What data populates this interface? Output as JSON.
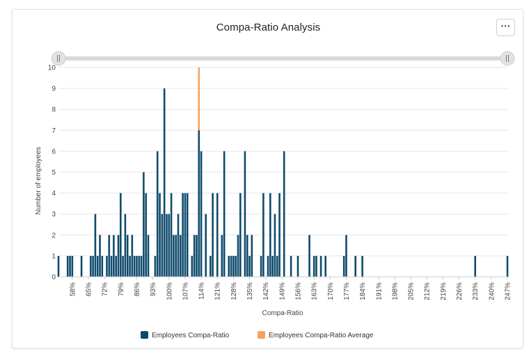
{
  "widget": {
    "menu_icon": "more-horizontal-icon",
    "menu_label": "···"
  },
  "colors": {
    "primary": "#0e4a6b",
    "average": "#f5a35c",
    "grid": "#e6e6e6",
    "axis": "#cccccc",
    "slider_track": "#dadada",
    "slider_handle": "#e2e2e2"
  },
  "chart_data": {
    "type": "bar",
    "title": "Compa-Ratio Analysis",
    "xlabel": "Compa-Ratio",
    "ylabel": "Number of employees",
    "x_range": [
      52,
      247
    ],
    "ylim": [
      0,
      10
    ],
    "y_ticks": [
      "0",
      "1",
      "2",
      "3",
      "4",
      "5",
      "6",
      "7",
      "8",
      "9",
      "10"
    ],
    "x_tick_labels": [
      "58%",
      "65%",
      "72%",
      "79%",
      "86%",
      "93%",
      "100%",
      "107%",
      "114%",
      "121%",
      "128%",
      "135%",
      "142%",
      "149%",
      "156%",
      "163%",
      "170%",
      "177%",
      "184%",
      "191%",
      "198%",
      "205%",
      "212%",
      "219%",
      "226%",
      "233%",
      "240%",
      "247%"
    ],
    "x_tick_values": [
      58,
      65,
      72,
      79,
      86,
      93,
      100,
      107,
      114,
      121,
      128,
      135,
      142,
      149,
      156,
      163,
      170,
      177,
      184,
      191,
      198,
      205,
      212,
      219,
      226,
      233,
      240,
      247
    ],
    "grid": true,
    "legend_position": "bottom",
    "series": [
      {
        "name": "Employees Compa-Ratio",
        "color": "#0e4a6b",
        "points": [
          [
            52,
            1
          ],
          [
            56,
            1
          ],
          [
            57,
            1
          ],
          [
            58,
            1
          ],
          [
            62,
            1
          ],
          [
            66,
            1
          ],
          [
            67,
            1
          ],
          [
            68,
            3
          ],
          [
            69,
            1
          ],
          [
            70,
            2
          ],
          [
            71,
            1
          ],
          [
            73,
            1
          ],
          [
            74,
            2
          ],
          [
            75,
            1
          ],
          [
            76,
            2
          ],
          [
            77,
            1
          ],
          [
            78,
            2
          ],
          [
            79,
            4
          ],
          [
            80,
            1
          ],
          [
            81,
            3
          ],
          [
            82,
            2
          ],
          [
            83,
            1
          ],
          [
            84,
            2
          ],
          [
            85,
            1
          ],
          [
            86,
            1
          ],
          [
            87,
            1
          ],
          [
            88,
            1
          ],
          [
            89,
            5
          ],
          [
            90,
            4
          ],
          [
            91,
            2
          ],
          [
            94,
            1
          ],
          [
            95,
            6
          ],
          [
            96,
            4
          ],
          [
            97,
            3
          ],
          [
            98,
            9
          ],
          [
            99,
            3
          ],
          [
            100,
            3
          ],
          [
            101,
            4
          ],
          [
            102,
            2
          ],
          [
            103,
            2
          ],
          [
            104,
            3
          ],
          [
            105,
            2
          ],
          [
            106,
            4
          ],
          [
            107,
            4
          ],
          [
            108,
            4
          ],
          [
            110,
            1
          ],
          [
            111,
            2
          ],
          [
            112,
            2
          ],
          [
            113,
            7
          ],
          [
            114,
            6
          ],
          [
            116,
            3
          ],
          [
            118,
            1
          ],
          [
            119,
            4
          ],
          [
            121,
            4
          ],
          [
            123,
            2
          ],
          [
            124,
            6
          ],
          [
            126,
            1
          ],
          [
            127,
            1
          ],
          [
            128,
            1
          ],
          [
            129,
            1
          ],
          [
            130,
            2
          ],
          [
            131,
            4
          ],
          [
            133,
            6
          ],
          [
            134,
            2
          ],
          [
            135,
            1
          ],
          [
            136,
            2
          ],
          [
            140,
            1
          ],
          [
            141,
            4
          ],
          [
            143,
            1
          ],
          [
            144,
            4
          ],
          [
            145,
            1
          ],
          [
            146,
            3
          ],
          [
            147,
            1
          ],
          [
            148,
            4
          ],
          [
            150,
            6
          ],
          [
            153,
            1
          ],
          [
            156,
            1
          ],
          [
            161,
            2
          ],
          [
            163,
            1
          ],
          [
            164,
            1
          ],
          [
            166,
            1
          ],
          [
            168,
            1
          ],
          [
            176,
            1
          ],
          [
            177,
            2
          ],
          [
            181,
            1
          ],
          [
            184,
            1
          ],
          [
            233,
            1
          ],
          [
            247,
            1
          ]
        ]
      },
      {
        "name": "Employees Compa-Ratio Average",
        "color": "#f5a35c",
        "points": [
          [
            113,
            3
          ]
        ],
        "stack_on": "Employees Compa-Ratio"
      }
    ]
  }
}
